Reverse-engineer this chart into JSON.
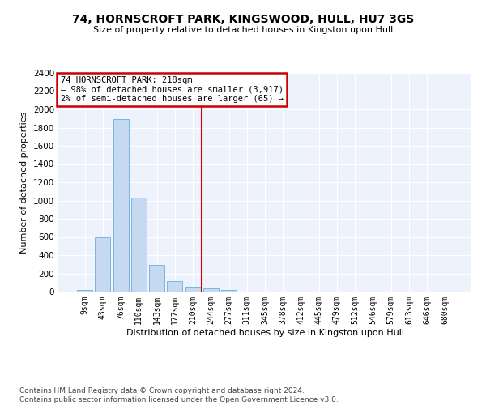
{
  "title": "74, HORNSCROFT PARK, KINGSWOOD, HULL, HU7 3GS",
  "subtitle": "Size of property relative to detached houses in Kingston upon Hull",
  "xlabel": "Distribution of detached houses by size in Kingston upon Hull",
  "ylabel": "Number of detached properties",
  "bar_color": "#c5d9f0",
  "bar_edge_color": "#6aaee0",
  "background_color": "#eef2fc",
  "grid_color": "#ffffff",
  "categories": [
    "9sqm",
    "43sqm",
    "76sqm",
    "110sqm",
    "143sqm",
    "177sqm",
    "210sqm",
    "244sqm",
    "277sqm",
    "311sqm",
    "345sqm",
    "378sqm",
    "412sqm",
    "445sqm",
    "479sqm",
    "512sqm",
    "546sqm",
    "579sqm",
    "613sqm",
    "646sqm",
    "680sqm"
  ],
  "values": [
    20,
    600,
    1890,
    1030,
    290,
    120,
    50,
    35,
    22,
    0,
    0,
    0,
    0,
    0,
    0,
    0,
    0,
    0,
    0,
    0,
    0
  ],
  "vline_index": 6,
  "vline_color": "#cc0000",
  "annotation_line1": "74 HORNSCROFT PARK: 218sqm",
  "annotation_line2": "← 98% of detached houses are smaller (3,917)",
  "annotation_line3": "2% of semi-detached houses are larger (65) →",
  "annotation_box_color": "#cc0000",
  "ylim_max": 2400,
  "yticks": [
    0,
    200,
    400,
    600,
    800,
    1000,
    1200,
    1400,
    1600,
    1800,
    2000,
    2200,
    2400
  ],
  "footnote_line1": "Contains HM Land Registry data © Crown copyright and database right 2024.",
  "footnote_line2": "Contains public sector information licensed under the Open Government Licence v3.0."
}
